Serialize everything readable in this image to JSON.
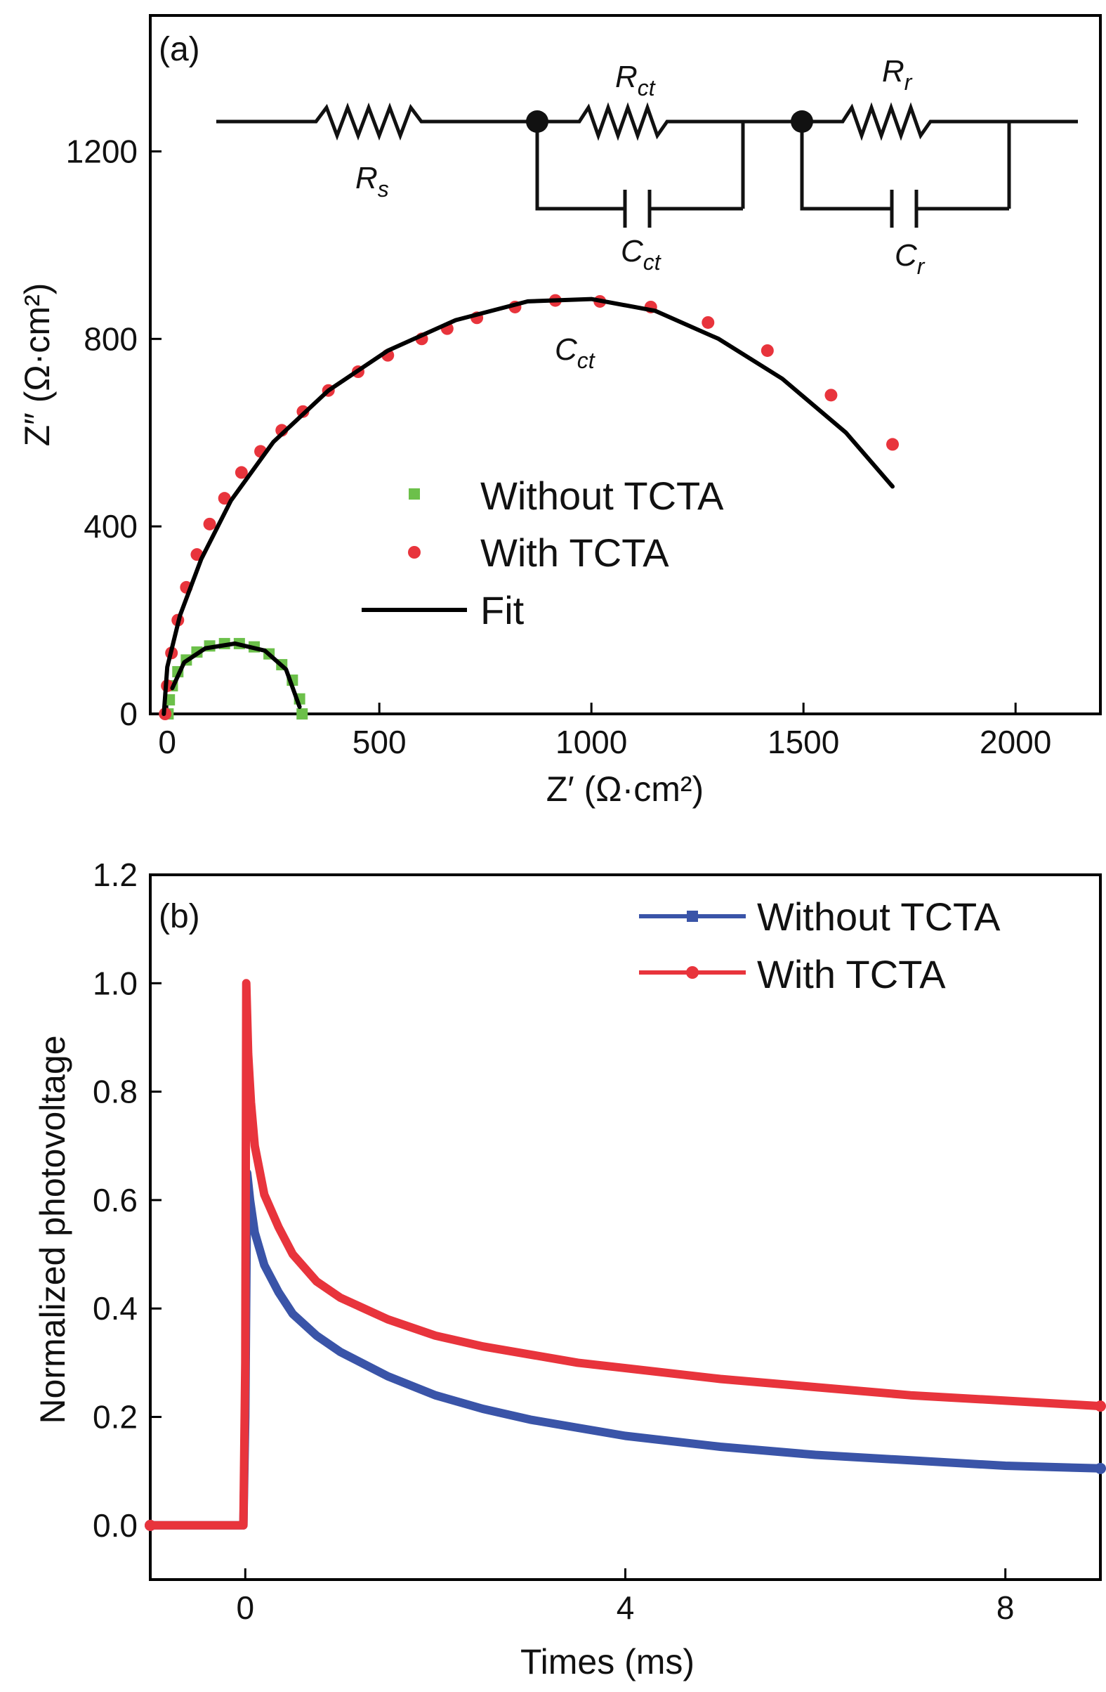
{
  "chart_data": [
    {
      "type": "scatter",
      "panel_label": "(a)",
      "xlabel": "Z′ (Ω·cm²)",
      "ylabel": "Z″ (Ω·cm²)",
      "xlim": [
        -40,
        2200
      ],
      "ylim": [
        0,
        1490
      ],
      "x_ticks": [
        0,
        500,
        1000,
        1500,
        2000
      ],
      "y_ticks": [
        0,
        400,
        800,
        1200
      ],
      "legend_position": "center",
      "inset_circuit": {
        "labels": {
          "Rs": [
            "R",
            "s"
          ],
          "Rct": [
            "R",
            "ct"
          ],
          "Rr": [
            "R",
            "r"
          ],
          "Cct": [
            "C",
            "ct"
          ],
          "Cr": [
            "C",
            "r"
          ]
        },
        "annotation": [
          "C",
          "ct"
        ]
      },
      "series": [
        {
          "name": "Without TCTA",
          "marker": "square",
          "color": "#6cc04a",
          "x": [
            2,
            5,
            12,
            25,
            45,
            70,
            100,
            135,
            170,
            205,
            240,
            270,
            295,
            312,
            318
          ],
          "y": [
            0,
            30,
            60,
            90,
            115,
            132,
            145,
            150,
            150,
            143,
            128,
            105,
            72,
            32,
            0
          ]
        },
        {
          "name": "With TCTA",
          "marker": "circle",
          "color": "#e8343c",
          "x": [
            -5,
            0,
            10,
            25,
            45,
            70,
            100,
            135,
            175,
            220,
            270,
            320,
            380,
            450,
            520,
            600,
            660,
            730,
            820,
            915,
            1020,
            1140,
            1275,
            1415,
            1565,
            1710
          ],
          "y": [
            0,
            60,
            130,
            200,
            270,
            340,
            405,
            460,
            515,
            560,
            605,
            645,
            690,
            730,
            765,
            800,
            822,
            845,
            868,
            882,
            880,
            868,
            835,
            775,
            680,
            575
          ]
        },
        {
          "name": "Fit",
          "marker": "line",
          "color": "#000000",
          "x": [
            -8,
            0,
            30,
            80,
            150,
            250,
            380,
            520,
            680,
            850,
            1000,
            1150,
            1300,
            1450,
            1600,
            1710
          ],
          "y": [
            0,
            100,
            210,
            330,
            455,
            580,
            690,
            775,
            840,
            880,
            885,
            860,
            800,
            715,
            600,
            485
          ]
        },
        {
          "name": "",
          "marker": "line",
          "color": "#000000",
          "x": [
            12,
            40,
            90,
            160,
            230,
            280,
            312
          ],
          "y": [
            55,
            110,
            140,
            150,
            135,
            95,
            15
          ]
        }
      ]
    },
    {
      "type": "line",
      "panel_label": "(b)",
      "xlabel": "Times (ms)",
      "ylabel": "Normalized photovoltage",
      "xlim": [
        -1,
        9
      ],
      "ylim": [
        -0.1,
        1.2
      ],
      "x_ticks": [
        0,
        4,
        8
      ],
      "y_ticks": [
        0.0,
        0.2,
        0.4,
        0.6,
        0.8,
        1.0,
        1.2
      ],
      "legend_position": "top-right",
      "series": [
        {
          "name": "Without TCTA",
          "color": "#3a54a8",
          "x": [
            -1,
            -0.5,
            -0.02,
            0,
            0.02,
            0.05,
            0.1,
            0.2,
            0.35,
            0.5,
            0.75,
            1,
            1.5,
            2,
            2.5,
            3,
            3.5,
            4,
            5,
            6,
            7,
            8,
            9
          ],
          "y": [
            0.0,
            0.0,
            0.0,
            0.2,
            0.65,
            0.6,
            0.54,
            0.48,
            0.43,
            0.39,
            0.35,
            0.32,
            0.275,
            0.24,
            0.215,
            0.195,
            0.18,
            0.165,
            0.145,
            0.13,
            0.12,
            0.11,
            0.105
          ]
        },
        {
          "name": "With TCTA",
          "color": "#e8343c",
          "x": [
            -1,
            -0.5,
            -0.02,
            0,
            0.01,
            0.03,
            0.06,
            0.1,
            0.2,
            0.35,
            0.5,
            0.75,
            1,
            1.5,
            2,
            2.5,
            3,
            3.5,
            4,
            5,
            6,
            7,
            8,
            9
          ],
          "y": [
            0.0,
            0.0,
            0.0,
            0.3,
            1.0,
            0.87,
            0.78,
            0.7,
            0.61,
            0.55,
            0.5,
            0.45,
            0.42,
            0.38,
            0.35,
            0.33,
            0.315,
            0.3,
            0.29,
            0.27,
            0.255,
            0.24,
            0.23,
            0.22
          ]
        }
      ]
    }
  ]
}
